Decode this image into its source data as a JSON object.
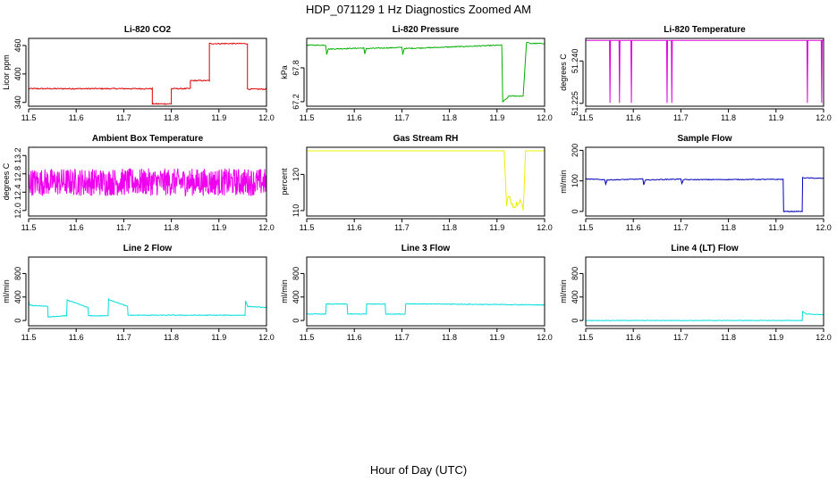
{
  "figure": {
    "title": "HDP_071129  1 Hz Diagnostics Zoomed AM",
    "xlabel": "Hour of Day (UTC)"
  },
  "chart_data": [
    {
      "type": "line",
      "title": "Li-820 CO2",
      "ylabel": "Licor ppm",
      "color": "#dd0000",
      "xlim": [
        11.5,
        12.0
      ],
      "ylim": [
        332,
        475
      ],
      "xticks": [
        "11.5",
        "11.6",
        "11.7",
        "11.8",
        "11.9",
        "12.0"
      ],
      "yticks": [
        340,
        400,
        460
      ],
      "series": [
        {
          "name": "CO2",
          "x": [
            11.5,
            11.76,
            11.76,
            11.8,
            11.8,
            11.84,
            11.84,
            11.88,
            11.88,
            11.96,
            11.96,
            12.0
          ],
          "y": [
            369,
            369,
            337,
            337,
            369,
            369,
            386,
            386,
            464,
            464,
            368,
            368
          ],
          "noise": 1.2
        }
      ]
    },
    {
      "type": "line",
      "title": "Li-820 Pressure",
      "ylabel": "kPa",
      "color": "#00b000",
      "xlim": [
        11.5,
        12.0
      ],
      "ylim": [
        67.12,
        68.32
      ],
      "xticks": [
        "11.5",
        "11.6",
        "11.7",
        "11.8",
        "11.9",
        "12.0"
      ],
      "yticks": [
        67.2,
        67.8
      ],
      "series": [
        {
          "name": "Pressure",
          "x": [
            11.5,
            11.54,
            11.542,
            11.545,
            11.62,
            11.622,
            11.625,
            11.7,
            11.702,
            11.705,
            11.91,
            11.912,
            11.92,
            11.925,
            11.955,
            11.962,
            11.97,
            12.0
          ],
          "y": [
            68.2,
            68.2,
            68.04,
            68.13,
            68.15,
            68.04,
            68.14,
            68.16,
            68.04,
            68.14,
            68.2,
            67.2,
            67.25,
            67.3,
            67.3,
            68.25,
            68.23,
            68.23
          ],
          "noise": 0.008
        }
      ]
    },
    {
      "type": "line",
      "title": "Li-820 Temperature",
      "ylabel": "degrees C",
      "color": "#dd00dd",
      "xlim": [
        11.5,
        12.0
      ],
      "ylim": [
        51.224,
        51.248
      ],
      "xticks": [
        "11.5",
        "11.6",
        "11.7",
        "11.8",
        "11.9",
        "12.0"
      ],
      "yticks": [
        51.225,
        51.24
      ],
      "series": [
        {
          "name": "Temperature",
          "x": [
            11.5,
            11.55,
            11.551,
            11.552,
            11.57,
            11.571,
            11.572,
            11.595,
            11.596,
            11.597,
            11.67,
            11.671,
            11.672,
            11.68,
            11.681,
            11.682,
            11.965,
            11.966,
            11.967,
            11.995,
            11.996,
            11.997,
            12.0
          ],
          "y": [
            51.2473,
            51.2473,
            51.2252,
            51.2473,
            51.2473,
            51.2252,
            51.2473,
            51.2473,
            51.2252,
            51.2473,
            51.2473,
            51.2252,
            51.2473,
            51.2473,
            51.2252,
            51.2473,
            51.2473,
            51.2252,
            51.2473,
            51.2473,
            51.2252,
            51.2473,
            51.2473
          ],
          "noise": 0
        }
      ]
    },
    {
      "type": "line",
      "title": "Ambient Box Temperature",
      "ylabel": "degrees C",
      "color": "#ee00ee",
      "xlim": [
        11.5,
        12.0
      ],
      "ylim": [
        11.88,
        13.38
      ],
      "xticks": [
        "11.5",
        "11.6",
        "11.7",
        "11.8",
        "11.9",
        "12.0"
      ],
      "yticks": [
        12.0,
        12.4,
        12.8,
        13.2
      ],
      "series": [
        {
          "name": "Box Temp",
          "x": [
            11.5,
            12.0
          ],
          "y": [
            12.62,
            12.62
          ],
          "noise": 0.3,
          "dense": true
        }
      ]
    },
    {
      "type": "line",
      "title": "Gas Stream RH",
      "ylabel": "percent",
      "color": "#eeee00",
      "xlim": [
        11.5,
        12.0
      ],
      "ylim": [
        108.5,
        127.5
      ],
      "xticks": [
        "11.5",
        "11.6",
        "11.7",
        "11.8",
        "11.9",
        "12.0"
      ],
      "yticks": [
        110,
        120
      ],
      "series": [
        {
          "name": "RH",
          "x": [
            11.5,
            11.915,
            11.92,
            11.925,
            11.935,
            11.95,
            11.955,
            11.96,
            12.0
          ],
          "y": [
            126.5,
            126.5,
            112,
            114,
            111,
            113,
            110,
            126.5,
            126.5
          ],
          "noise": 0.8,
          "noiseRange": [
            11.918,
            11.958
          ]
        }
      ]
    },
    {
      "type": "line",
      "title": "Sample Flow",
      "ylabel": "ml/min",
      "color": "#0000bb",
      "xlim": [
        11.5,
        12.0
      ],
      "ylim": [
        -15,
        210
      ],
      "xticks": [
        "11.5",
        "11.6",
        "11.7",
        "11.8",
        "11.9",
        "12.0"
      ],
      "yticks": [
        0,
        100,
        200
      ],
      "series": [
        {
          "name": "Sample Flow",
          "x": [
            11.5,
            11.54,
            11.542,
            11.545,
            11.62,
            11.622,
            11.625,
            11.7,
            11.702,
            11.705,
            11.915,
            11.916,
            11.955,
            11.956,
            12.0
          ],
          "y": [
            106,
            104,
            90,
            103,
            106,
            88,
            103,
            106,
            90,
            104,
            105,
            0,
            0,
            110,
            108
          ],
          "noise": 1.2
        }
      ]
    },
    {
      "type": "line",
      "title": "Line 2 Flow",
      "ylabel": "ml/min",
      "color": "#00dddd",
      "xlim": [
        11.5,
        12.0
      ],
      "ylim": [
        -90,
        1080
      ],
      "xticks": [
        "11.5",
        "11.6",
        "11.7",
        "11.8",
        "11.9",
        "12.0"
      ],
      "yticks": [
        0,
        400,
        800
      ],
      "series": [
        {
          "name": "Line 2",
          "x": [
            11.5,
            11.502,
            11.54,
            11.541,
            11.58,
            11.581,
            11.625,
            11.626,
            11.667,
            11.668,
            11.708,
            11.709,
            11.955,
            11.956,
            11.96,
            12.0
          ],
          "y": [
            340,
            260,
            240,
            60,
            80,
            350,
            220,
            80,
            80,
            360,
            240,
            90,
            90,
            340,
            240,
            220
          ],
          "noise": 6
        }
      ]
    },
    {
      "type": "line",
      "title": "Line 3 Flow",
      "ylabel": "ml/min",
      "color": "#00dddd",
      "xlim": [
        11.5,
        12.0
      ],
      "ylim": [
        -90,
        1080
      ],
      "xticks": [
        "11.5",
        "11.6",
        "11.7",
        "11.8",
        "11.9",
        "12.0"
      ],
      "yticks": [
        0,
        400,
        800
      ],
      "series": [
        {
          "name": "Line 3",
          "x": [
            11.5,
            11.54,
            11.541,
            11.585,
            11.586,
            11.625,
            11.626,
            11.665,
            11.666,
            11.707,
            11.708,
            12.0
          ],
          "y": [
            110,
            110,
            280,
            280,
            110,
            110,
            280,
            280,
            110,
            110,
            285,
            265
          ],
          "noise": 6
        }
      ]
    },
    {
      "type": "line",
      "title": "Line 4 (LT) Flow",
      "ylabel": "ml/min",
      "color": "#00dddd",
      "xlim": [
        11.5,
        12.0
      ],
      "ylim": [
        -90,
        1080
      ],
      "xticks": [
        "11.5",
        "11.6",
        "11.7",
        "11.8",
        "11.9",
        "12.0"
      ],
      "yticks": [
        0,
        400,
        800
      ],
      "series": [
        {
          "name": "Line 4",
          "x": [
            11.5,
            11.955,
            11.956,
            11.965,
            12.0
          ],
          "y": [
            0,
            0,
            150,
            110,
            100
          ],
          "noise": 4
        }
      ]
    }
  ]
}
